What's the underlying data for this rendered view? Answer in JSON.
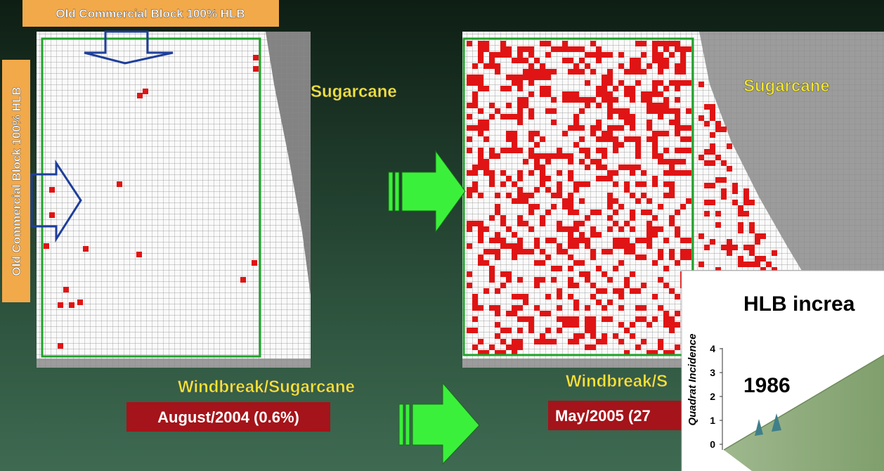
{
  "labels": {
    "top_banner": "Old Commercial Block 100% HLB",
    "side_banner": "Old Commercial Block 100% HLB",
    "left_sugarcane": "Sugarcane",
    "right_sugarcane": "Sugarcane",
    "left_windbreak": "Windbreak/Sugarcane",
    "right_windbreak": "Windbreak/S",
    "left_date": "August/2004 (0.6%)",
    "right_date": "May/2005 (27"
  },
  "inset": {
    "title": "HLB increa",
    "year": "1986",
    "axis_label": "Quadrat Incidence",
    "ticks": [
      "4",
      "3",
      "2",
      "1",
      "0"
    ]
  }
}
